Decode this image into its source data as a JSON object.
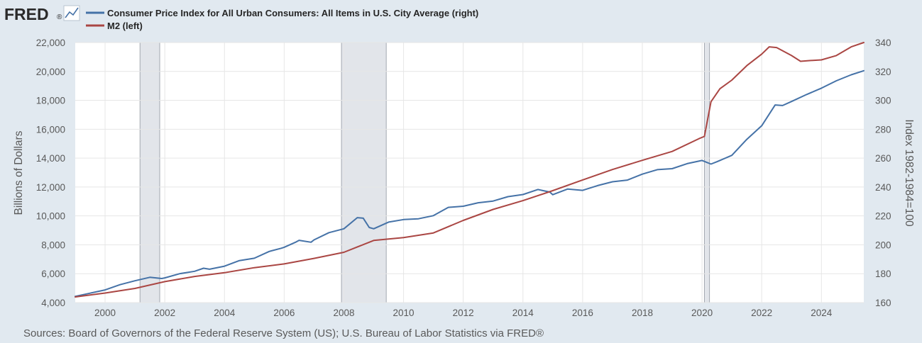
{
  "logo": {
    "text": "FRED",
    "trademark": "®",
    "icon": "line-chart-icon"
  },
  "legend": [
    {
      "label": "Consumer Price Index for All Urban Consumers: All Items in U.S. City Average (right)",
      "color": "#4572a7"
    },
    {
      "label": "M2 (left)",
      "color": "#aa4643"
    }
  ],
  "source": "Sources: Board of Governors of the Federal Reserve System (US); U.S. Bureau of Labor Statistics via FRED®",
  "chart_data": {
    "type": "line",
    "xlim": [
      1999.0,
      2025.42
    ],
    "x_ticks": [
      "2000",
      "2002",
      "2004",
      "2006",
      "2008",
      "2010",
      "2012",
      "2014",
      "2016",
      "2018",
      "2020",
      "2022",
      "2024"
    ],
    "y_left": {
      "label": "Billions of Dollars",
      "lim": [
        4000,
        22000
      ],
      "ticks": [
        "4,000",
        "6,000",
        "8,000",
        "10,000",
        "12,000",
        "14,000",
        "16,000",
        "18,000",
        "20,000",
        "22,000"
      ]
    },
    "y_right": {
      "label": "Index 1982-1984=100",
      "lim": [
        160,
        340
      ],
      "ticks": [
        "160",
        "180",
        "200",
        "220",
        "240",
        "260",
        "280",
        "300",
        "320",
        "340"
      ]
    },
    "grid": true,
    "recessions": [
      [
        2001.17,
        2001.83
      ],
      [
        2007.92,
        2009.42
      ],
      [
        2020.08,
        2020.25
      ]
    ],
    "series": [
      {
        "name": "Consumer Price Index for All Urban Consumers: All Items in U.S. City Average (right)",
        "axis": "right",
        "color": "#4572a7",
        "points": [
          [
            1999.0,
            164.3
          ],
          [
            1999.5,
            166.5
          ],
          [
            2000.0,
            168.8
          ],
          [
            2000.5,
            172.4
          ],
          [
            2001.0,
            175.1
          ],
          [
            2001.5,
            177.5
          ],
          [
            2001.9,
            176.7
          ],
          [
            2002.0,
            177.1
          ],
          [
            2002.5,
            180.0
          ],
          [
            2003.0,
            181.7
          ],
          [
            2003.3,
            183.8
          ],
          [
            2003.5,
            183.1
          ],
          [
            2004.0,
            185.2
          ],
          [
            2004.5,
            189.1
          ],
          [
            2005.0,
            190.7
          ],
          [
            2005.5,
            195.4
          ],
          [
            2005.9,
            197.6
          ],
          [
            2006.0,
            198.3
          ],
          [
            2006.4,
            202.0
          ],
          [
            2006.5,
            203.1
          ],
          [
            2006.9,
            201.8
          ],
          [
            2007.0,
            203.4
          ],
          [
            2007.5,
            208.4
          ],
          [
            2008.0,
            211.1
          ],
          [
            2008.45,
            218.8
          ],
          [
            2008.65,
            218.4
          ],
          [
            2008.85,
            212.0
          ],
          [
            2009.0,
            211.1
          ],
          [
            2009.5,
            215.7
          ],
          [
            2010.0,
            217.5
          ],
          [
            2010.5,
            218.0
          ],
          [
            2011.0,
            220.2
          ],
          [
            2011.5,
            225.9
          ],
          [
            2012.0,
            226.7
          ],
          [
            2012.5,
            229.1
          ],
          [
            2013.0,
            230.3
          ],
          [
            2013.5,
            233.3
          ],
          [
            2014.0,
            234.8
          ],
          [
            2014.5,
            238.3
          ],
          [
            2014.9,
            236.5
          ],
          [
            2015.0,
            234.7
          ],
          [
            2015.5,
            238.6
          ],
          [
            2016.0,
            237.7
          ],
          [
            2016.5,
            241.0
          ],
          [
            2017.0,
            243.6
          ],
          [
            2017.5,
            244.8
          ],
          [
            2018.0,
            248.9
          ],
          [
            2018.5,
            252.0
          ],
          [
            2019.0,
            252.7
          ],
          [
            2019.5,
            256.2
          ],
          [
            2020.0,
            258.4
          ],
          [
            2020.3,
            255.9
          ],
          [
            2020.5,
            257.5
          ],
          [
            2021.0,
            261.9
          ],
          [
            2021.5,
            273.0
          ],
          [
            2022.0,
            282.4
          ],
          [
            2022.45,
            296.8
          ],
          [
            2022.7,
            296.4
          ],
          [
            2023.0,
            299.2
          ],
          [
            2023.5,
            304.0
          ],
          [
            2024.0,
            308.4
          ],
          [
            2024.5,
            313.5
          ],
          [
            2025.0,
            317.7
          ],
          [
            2025.42,
            320.5
          ]
        ]
      },
      {
        "name": "M2 (left)",
        "axis": "left",
        "color": "#aa4643",
        "points": [
          [
            1999.0,
            4390
          ],
          [
            2000.0,
            4660
          ],
          [
            2001.0,
            4980
          ],
          [
            2002.0,
            5450
          ],
          [
            2003.0,
            5810
          ],
          [
            2004.0,
            6070
          ],
          [
            2005.0,
            6420
          ],
          [
            2006.0,
            6680
          ],
          [
            2007.0,
            7060
          ],
          [
            2008.0,
            7480
          ],
          [
            2009.0,
            8300
          ],
          [
            2010.0,
            8500
          ],
          [
            2011.0,
            8820
          ],
          [
            2012.0,
            9690
          ],
          [
            2013.0,
            10450
          ],
          [
            2014.0,
            11060
          ],
          [
            2015.0,
            11750
          ],
          [
            2016.0,
            12490
          ],
          [
            2017.0,
            13210
          ],
          [
            2018.0,
            13850
          ],
          [
            2019.0,
            14460
          ],
          [
            2019.9,
            15350
          ],
          [
            2020.08,
            15500
          ],
          [
            2020.3,
            17900
          ],
          [
            2020.6,
            18800
          ],
          [
            2021.0,
            19400
          ],
          [
            2021.5,
            20400
          ],
          [
            2022.0,
            21200
          ],
          [
            2022.25,
            21700
          ],
          [
            2022.5,
            21650
          ],
          [
            2023.0,
            21100
          ],
          [
            2023.3,
            20700
          ],
          [
            2023.6,
            20750
          ],
          [
            2024.0,
            20800
          ],
          [
            2024.5,
            21100
          ],
          [
            2025.0,
            21700
          ],
          [
            2025.42,
            22000
          ]
        ]
      }
    ]
  }
}
